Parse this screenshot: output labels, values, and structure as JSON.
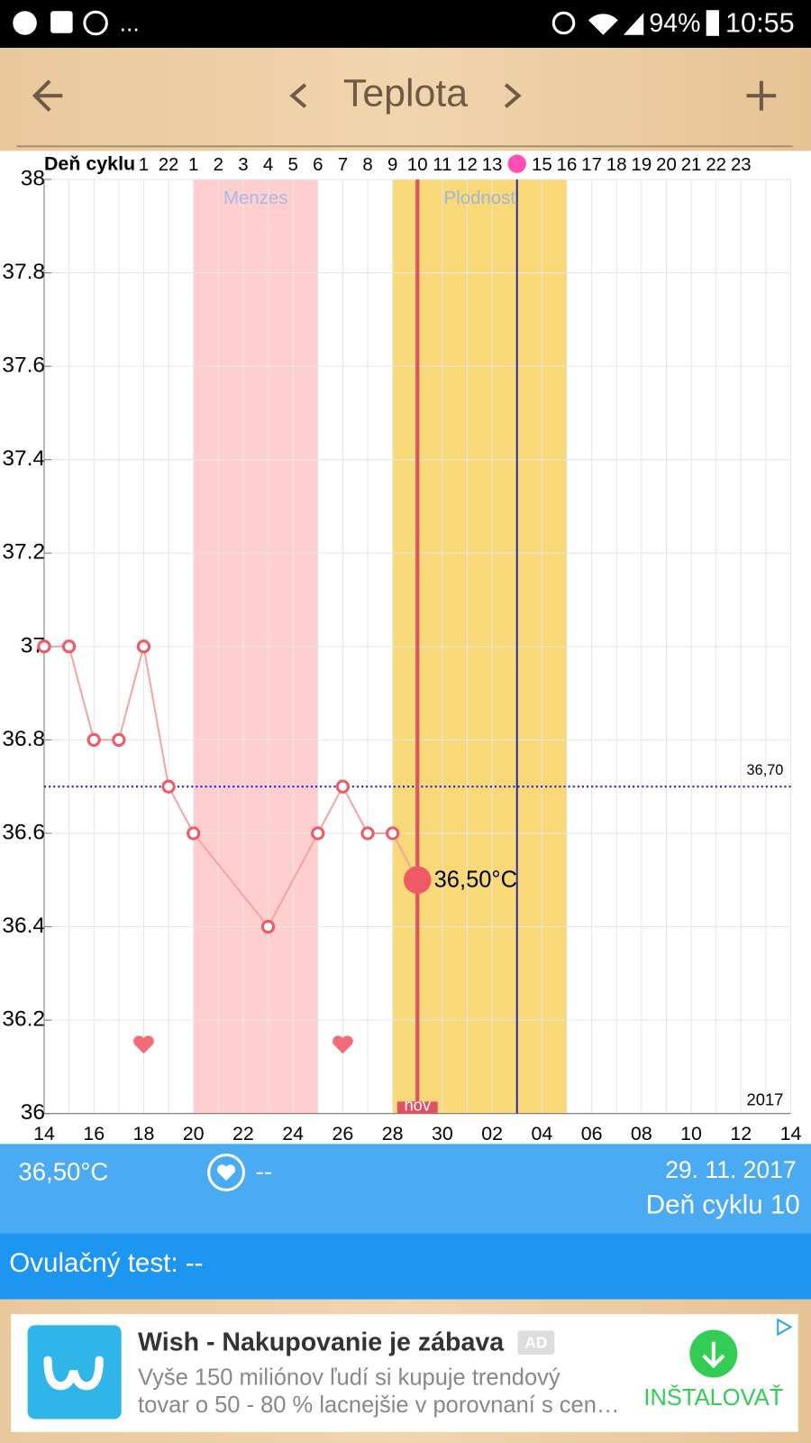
{
  "status_bar": {
    "left_text": "...",
    "battery": "94%",
    "time": "10:55"
  },
  "header": {
    "title": "Teplota"
  },
  "chart_data": {
    "type": "line",
    "cycle_label": "Deň cyklu",
    "categories": [
      "14",
      null,
      "16",
      null,
      "18",
      null,
      "20",
      null,
      "22",
      null,
      "24",
      null,
      "26",
      null,
      "28",
      null,
      "30",
      null,
      "02",
      null,
      "04",
      null,
      "06",
      null,
      "08",
      null,
      "10",
      null,
      "12",
      null,
      "14"
    ],
    "cycle_days": [
      null,
      null,
      null,
      null,
      "1",
      "22",
      "1",
      "2",
      "3",
      "4",
      "5",
      "6",
      "7",
      "8",
      "9",
      "10",
      "11",
      "12",
      "13",
      null,
      "15",
      "16",
      "17",
      "18",
      "19",
      "20",
      "21",
      "22",
      "23",
      null,
      null
    ],
    "series": [
      {
        "color": "#ef5a66",
        "line_color": "#f6a3a3",
        "values": [
          37,
          37,
          36.8,
          36.8,
          37,
          36.7,
          36.6,
          null,
          null,
          36.4,
          null,
          36.6,
          36.7,
          36.6,
          36.6,
          36.5,
          null,
          null,
          null,
          null,
          null,
          null,
          null,
          null,
          null,
          null,
          null,
          null,
          null,
          null,
          null
        ],
        "value_labels": [
          null,
          null,
          null,
          null,
          null,
          null,
          null,
          null,
          null,
          null,
          null,
          null,
          null,
          null,
          null,
          "36,50°C",
          null,
          null,
          null,
          null,
          null,
          null,
          null,
          null,
          null,
          null,
          null,
          null,
          null,
          null,
          null
        ]
      }
    ],
    "bands": [
      {
        "label": "Menzes",
        "start": 6,
        "end": 11,
        "color": "#ffcfcf",
        "label_color": "#a9b8e8"
      },
      {
        "label": "Plodnost",
        "start": 14,
        "end": 21,
        "color": "#f9d878",
        "label_color": "#9fb6d8"
      }
    ],
    "today": {
      "index": 15,
      "label": "nov",
      "color": "#e05060"
    },
    "ovulation": {
      "index": 19,
      "color": "#2b2ba6",
      "dot_color": "#ff4fb0"
    },
    "intercourse": [
      4,
      12
    ],
    "reference_line": {
      "value": 36.7,
      "label": "36,70",
      "color": "#1a1ae0"
    },
    "year_label": "2017",
    "ylim": [
      36,
      38
    ],
    "yticks": [
      36,
      36.2,
      36.4,
      36.6,
      36.8,
      37,
      37.2,
      37.4,
      37.6,
      37.8,
      38
    ],
    "grid": true
  },
  "info_panel": {
    "temperature": "36,50°C",
    "intercourse": "--",
    "date": "29. 11. 2017",
    "cycle_day": "Deň cyklu 10"
  },
  "ovulation_test": "Ovulačný test: --",
  "ad": {
    "title": "Wish - Nakupovanie je zábava",
    "badge": "AD",
    "line1": "Vyše 150 miliónov ľudí si kupuje trendový",
    "line2": "tovar o 50 - 80 % lacnejšie v porovnaní s cen…",
    "button": "INŠTALOVAŤ"
  }
}
